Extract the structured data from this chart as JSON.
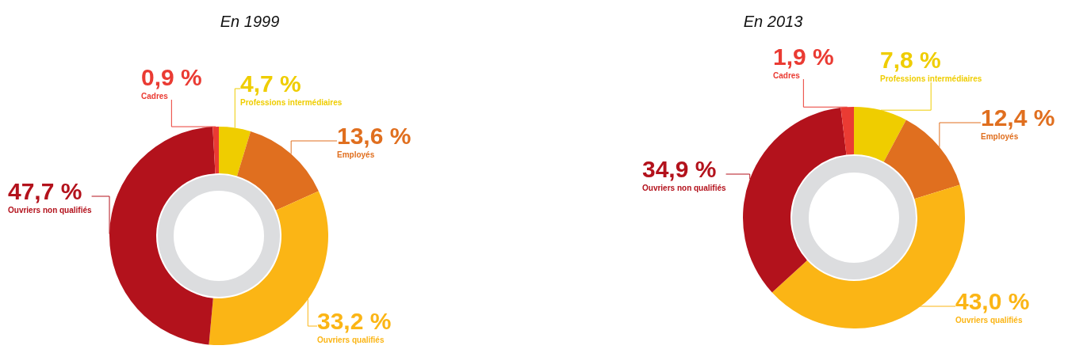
{
  "chart_data": [
    {
      "type": "donut",
      "title": "En 1999",
      "categories": [
        "Professions intermédiaires",
        "Employés",
        "Ouvriers qualifiés",
        "Ouvriers non qualifiés",
        "Cadres"
      ],
      "values": [
        4.7,
        13.6,
        33.2,
        47.7,
        0.9
      ],
      "colors": [
        "#efcd00",
        "#e06f1f",
        "#fbb515",
        "#b3121c",
        "#ea3b33"
      ],
      "value_labels": [
        "4,7 %",
        "13,6 %",
        "33,2 %",
        "47,7 %",
        "0,9 %"
      ]
    },
    {
      "type": "donut",
      "title": "En 2013",
      "categories": [
        "Professions intermédiaires",
        "Employés",
        "Ouvriers qualifiés",
        "Ouvriers non qualifiés",
        "Cadres"
      ],
      "values": [
        7.8,
        12.4,
        43.0,
        34.9,
        1.9
      ],
      "colors": [
        "#efcd00",
        "#e06f1f",
        "#fbb515",
        "#b3121c",
        "#ea3b33"
      ],
      "value_labels": [
        "7,8 %",
        "12,4 %",
        "43,0 %",
        "34,9 %",
        "1,9 %"
      ]
    }
  ]
}
